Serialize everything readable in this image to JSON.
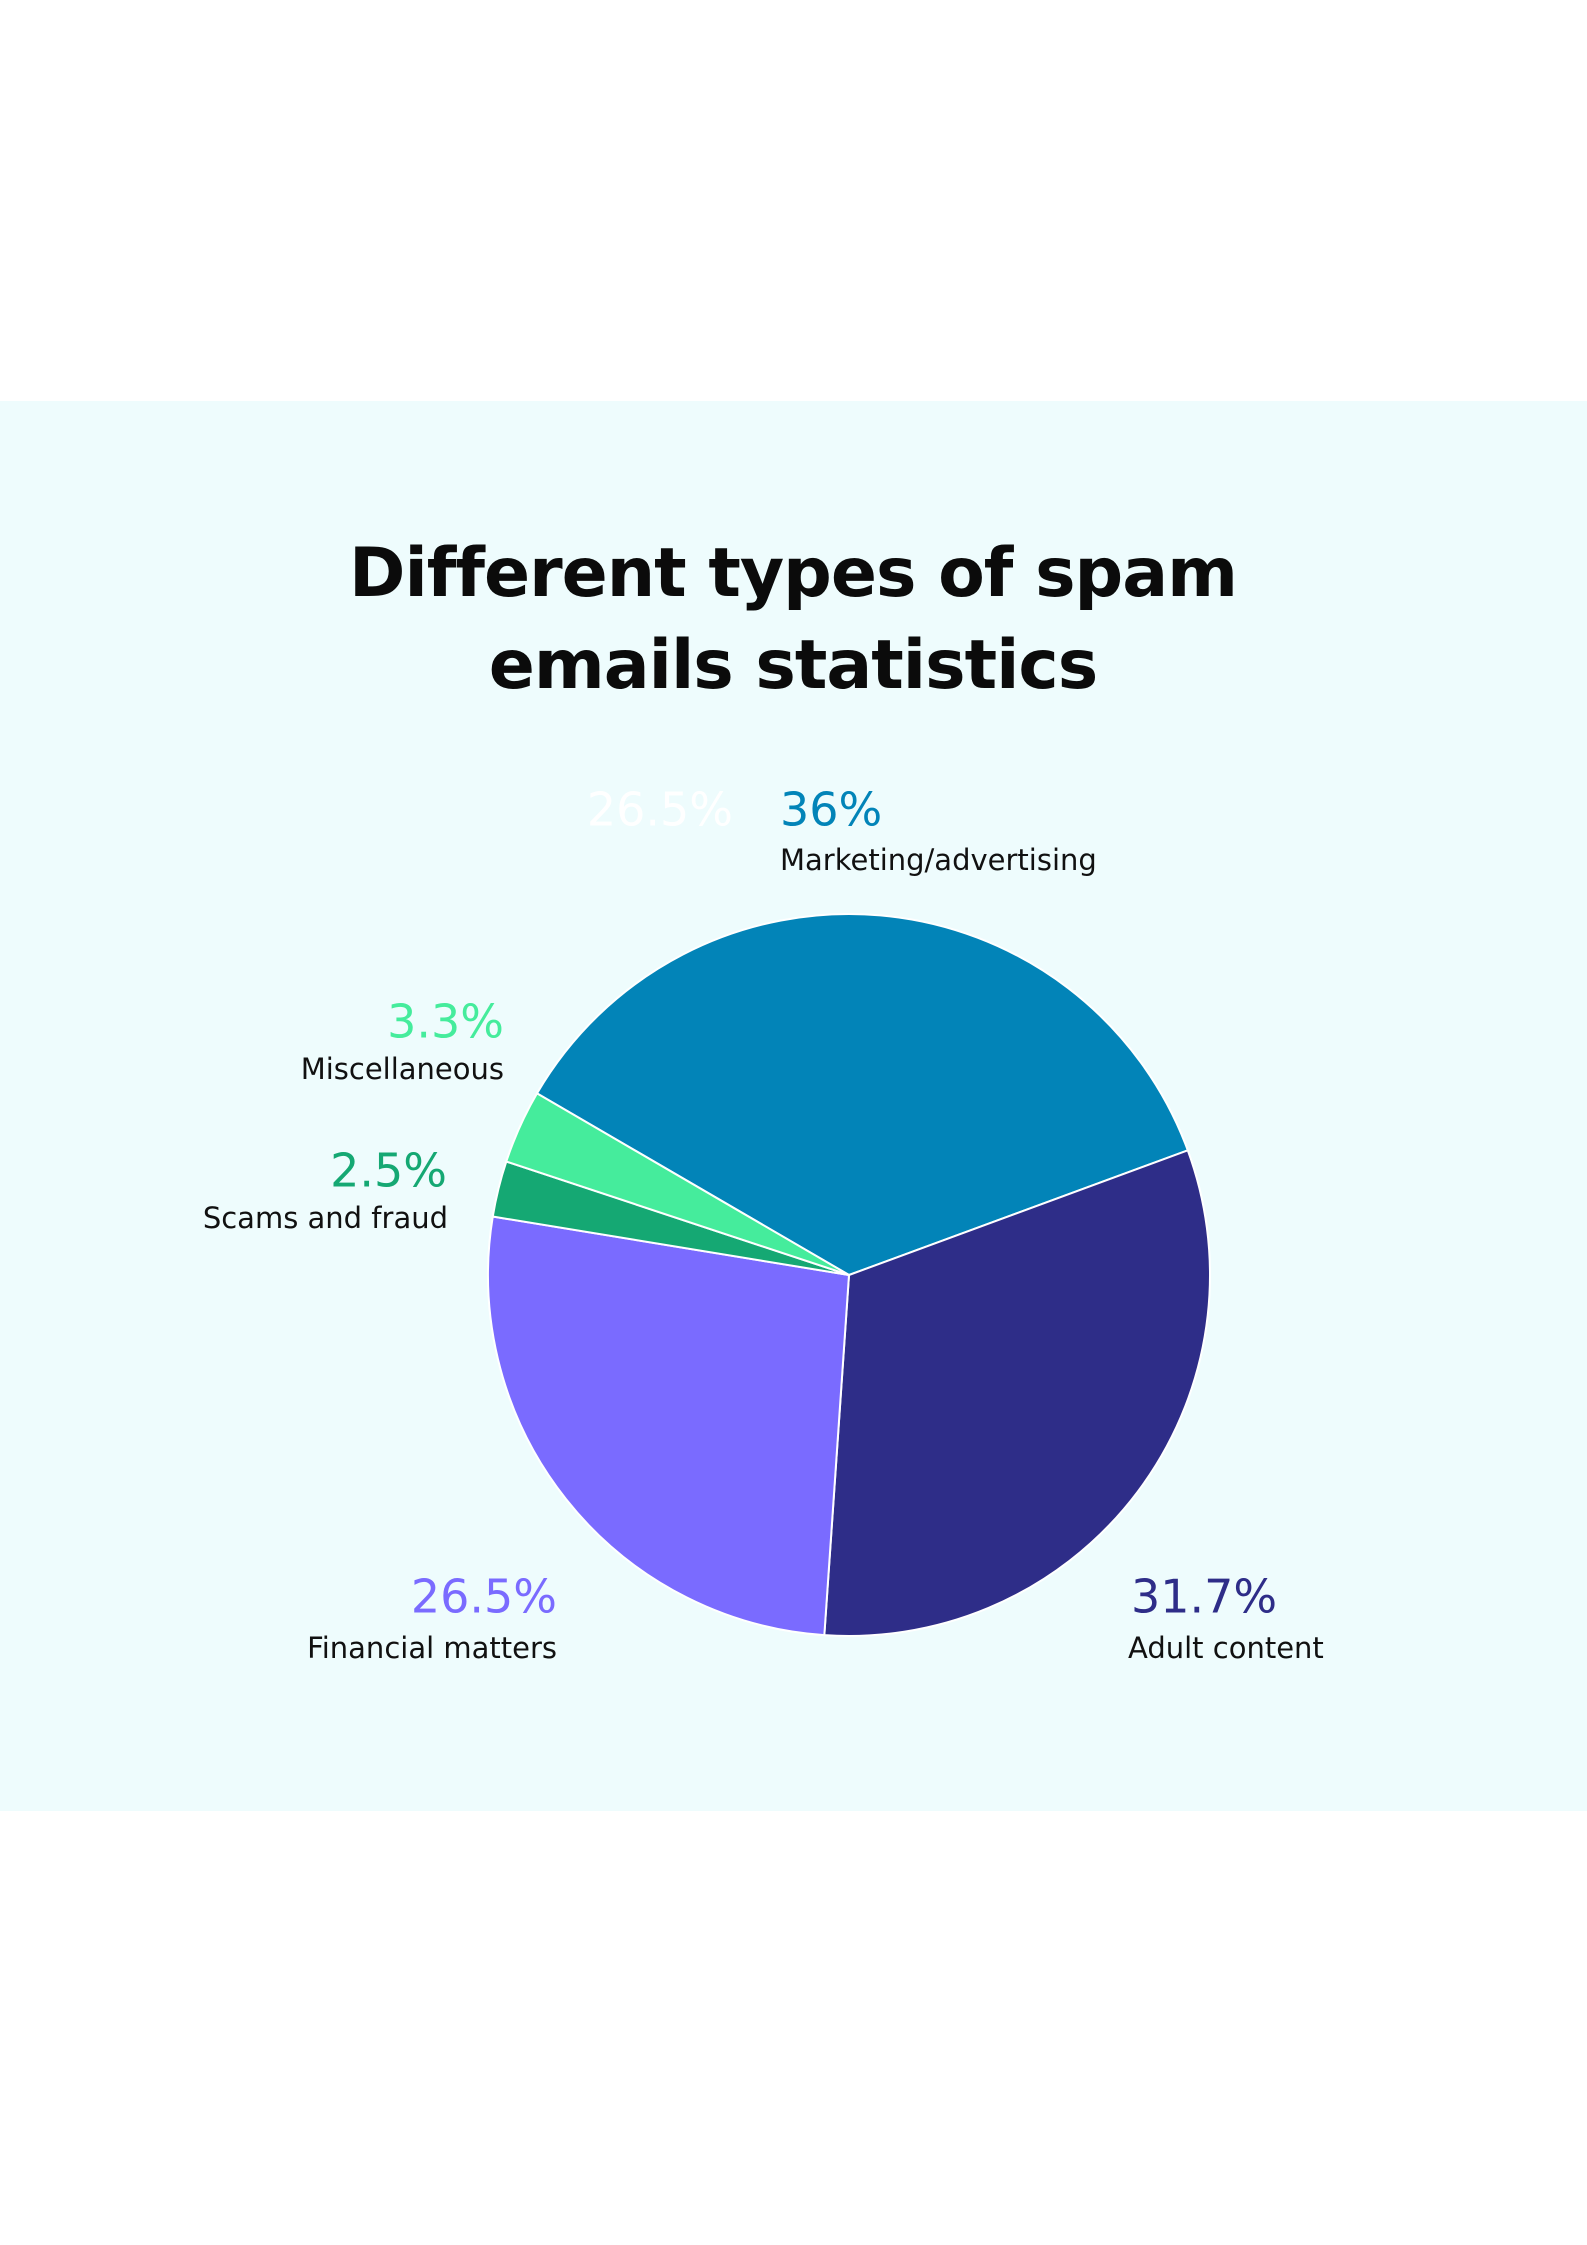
{
  "chart_data": {
    "type": "pie",
    "title": "Different types of spam emails statistics",
    "annotations": [
      "26.5%"
    ],
    "categories": [
      "Marketing/advertising",
      "Adult content",
      "Financial matters",
      "Scams and fraud",
      "Miscellaneous"
    ],
    "values": [
      36,
      31.7,
      26.5,
      2.5,
      3.3
    ],
    "value_labels": [
      "36%",
      "31.7%",
      "26.5%",
      "2.5%",
      "3.3%"
    ],
    "colors": [
      "#0284b8",
      "#2e2d88",
      "#7a6bff",
      "#15a873",
      "#45ec9c"
    ]
  }
}
